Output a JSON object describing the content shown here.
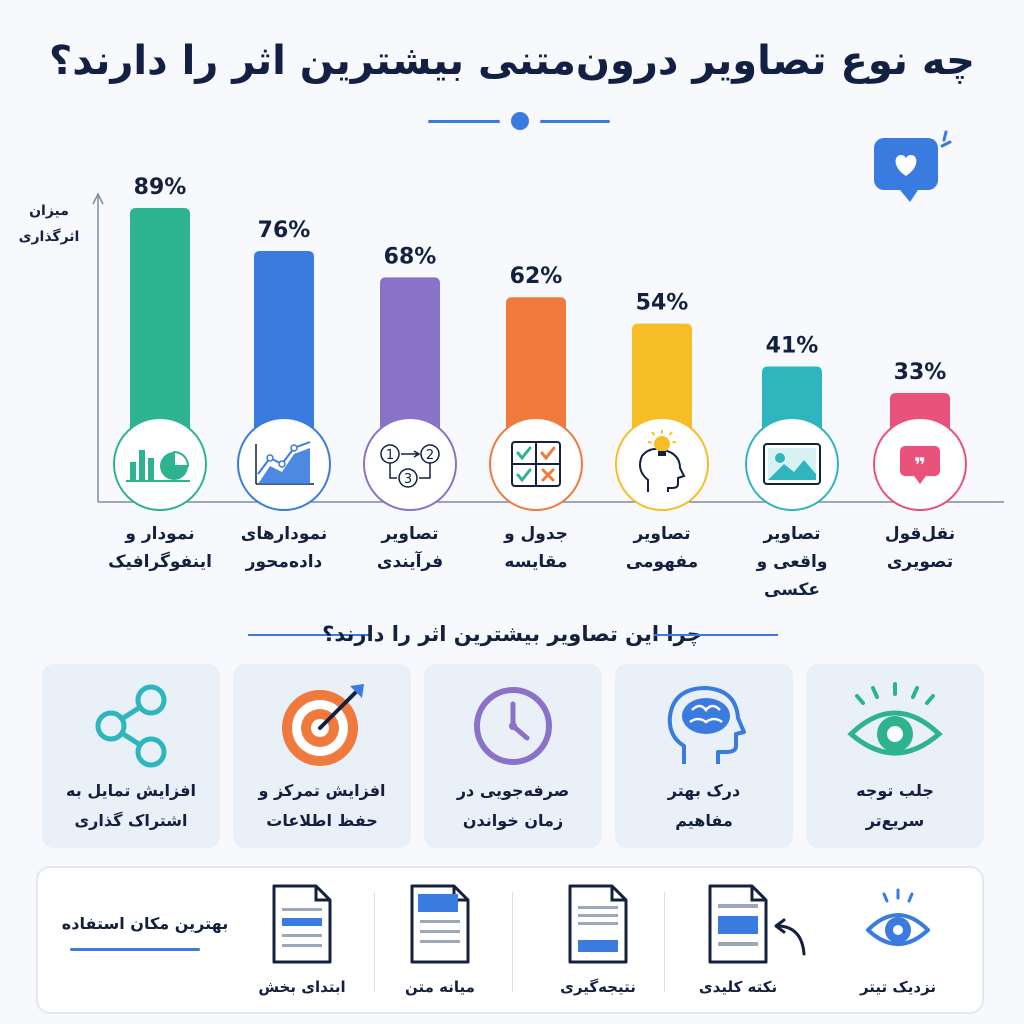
{
  "title": "چه نوع تصاویر درون‌متنی بیشترین اثر را دارند؟",
  "colors": {
    "accent": "#3a7be0",
    "dark": "#13213f"
  },
  "chart_data": {
    "type": "bar",
    "ylabel": "میزان اثرگذاری",
    "value_suffix": "%",
    "ylim": [
      0,
      100
    ],
    "grid": false,
    "categories": [
      "نمودار و اینفوگرافیک",
      "نمودارهای داده‌محور",
      "تصاویر فرآیندی",
      "جدول و مقایسه",
      "تصاویر مفهومی",
      "تصاویر واقعی و عکسی",
      "نقل‌قول تصویری"
    ],
    "category_lines": [
      [
        "نمودار و",
        "اینفوگرافیک"
      ],
      [
        "نمودارهای",
        "داده‌محور"
      ],
      [
        "تصاویر",
        "فرآیندی"
      ],
      [
        "جدول و",
        "مقایسه"
      ],
      [
        "تصاویر",
        "مفهومی"
      ],
      [
        "تصاویر",
        "واقعی و عکسی"
      ],
      [
        "نقل‌قول",
        "تصویری"
      ]
    ],
    "values": [
      89,
      76,
      68,
      62,
      54,
      41,
      33
    ],
    "colors": [
      "#2db38f",
      "#3a7be0",
      "#8a72c8",
      "#f07a3d",
      "#f7bd27",
      "#2fb5bd",
      "#e9527a"
    ],
    "icons": [
      "bar-pie-chart-icon",
      "line-chart-icon",
      "process-flow-icon",
      "comparison-table-icon",
      "lightbulb-head-icon",
      "photo-icon",
      "quote-icon"
    ],
    "process_steps": [
      "1",
      "2",
      "3"
    ],
    "quote_mark": "❞"
  },
  "why": {
    "title": "چرا این تصاویر بیشترین اثر را دارند؟",
    "cards": [
      {
        "line1": "جلب توجه",
        "line2": "سریع‌تر",
        "icon": "eye-icon",
        "color": "#2db38f"
      },
      {
        "line1": "درک بهتر",
        "line2": "مفاهیم",
        "icon": "brain-icon",
        "color": "#3a7be0"
      },
      {
        "line1": "صرفه‌جویی در",
        "line2": "زمان خواندن",
        "icon": "clock-icon",
        "color": "#8a72c8"
      },
      {
        "line1": "افزایش تمرکز و",
        "line2": "حفظ اطلاعات",
        "icon": "target-icon",
        "color": "#f07a3d"
      },
      {
        "line1": "افزایش تمایل به",
        "line2": "اشتراک گذاری",
        "icon": "share-icon",
        "color": "#2fb5bd"
      }
    ]
  },
  "placement": {
    "label": "بهترین مکان استفاده",
    "items": [
      {
        "label": "ابتدای بخش",
        "icon": "doc-top-highlight-icon"
      },
      {
        "label": "میانه متن",
        "icon": "doc-mid-highlight-icon"
      },
      {
        "label": "نتیجه‌گیری",
        "icon": "doc-end-highlight-icon"
      },
      {
        "label": "نکته کلیدی",
        "icon": "doc-key-point-icon"
      },
      {
        "label": "نزدیک تیتر",
        "icon": "eye-outline-icon"
      }
    ]
  }
}
